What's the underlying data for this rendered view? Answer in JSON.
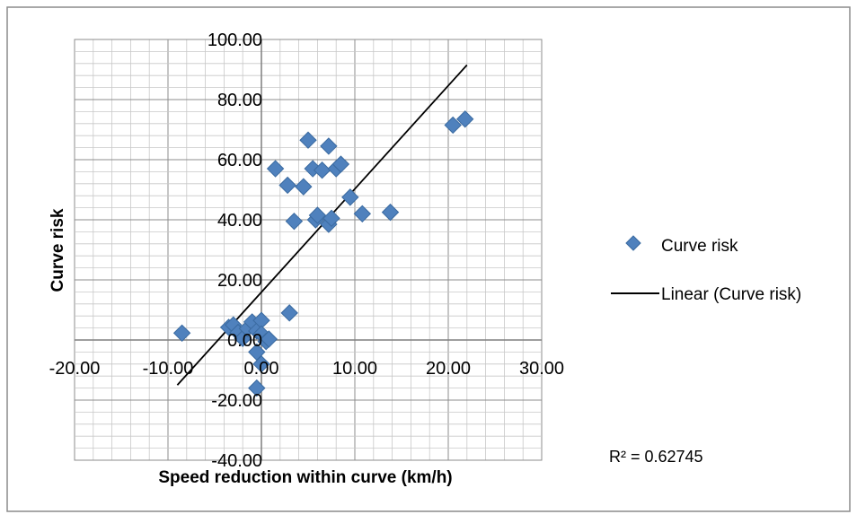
{
  "chart_data": {
    "type": "scatter",
    "xlabel": "Speed reduction within curve (km/h)",
    "ylabel": "Curve risk",
    "xlim": [
      -20,
      30
    ],
    "ylim": [
      -40,
      100
    ],
    "x_ticks": [
      "-20.00",
      "-10.00",
      "0.00",
      "10.00",
      "20.00",
      "30.00"
    ],
    "y_ticks": [
      "100.00",
      "80.00",
      "60.00",
      "40.00",
      "20.00",
      "0.00",
      "-20.00",
      "-40.00"
    ],
    "grid": true,
    "legend_position": "right",
    "series": [
      {
        "name": "Curve risk",
        "marker": "diamond",
        "color": "#4f81bd",
        "points": [
          [
            -8.5,
            2.3
          ],
          [
            -3.5,
            4.2
          ],
          [
            -3.0,
            5.0
          ],
          [
            -2.5,
            2.5
          ],
          [
            -2.0,
            0.5
          ],
          [
            -1.5,
            3.8
          ],
          [
            -1.0,
            6.0
          ],
          [
            -0.5,
            3.0
          ],
          [
            0.0,
            6.5
          ],
          [
            0.0,
            2.0
          ],
          [
            0.5,
            -0.5
          ],
          [
            0.8,
            0.3
          ],
          [
            -0.5,
            -4.0
          ],
          [
            0.0,
            -8.0
          ],
          [
            -0.5,
            -16.0
          ],
          [
            3.0,
            9.0
          ],
          [
            1.5,
            57.0
          ],
          [
            2.8,
            51.5
          ],
          [
            3.5,
            39.5
          ],
          [
            4.5,
            51.0
          ],
          [
            5.0,
            66.5
          ],
          [
            5.5,
            57.0
          ],
          [
            5.8,
            40.0
          ],
          [
            6.0,
            41.5
          ],
          [
            6.5,
            56.5
          ],
          [
            7.2,
            38.5
          ],
          [
            7.5,
            40.5
          ],
          [
            7.2,
            64.5
          ],
          [
            8.0,
            57.0
          ],
          [
            8.5,
            58.5
          ],
          [
            9.5,
            47.5
          ],
          [
            10.8,
            42.0
          ],
          [
            13.8,
            42.5
          ],
          [
            20.5,
            71.5
          ],
          [
            21.8,
            73.5
          ]
        ]
      },
      {
        "name": "Linear (Curve risk)",
        "type": "line",
        "color": "#000000",
        "points": [
          [
            -9.0,
            -15.0
          ],
          [
            22.0,
            91.5
          ]
        ]
      }
    ],
    "annotation": "R² = 0.62745"
  }
}
